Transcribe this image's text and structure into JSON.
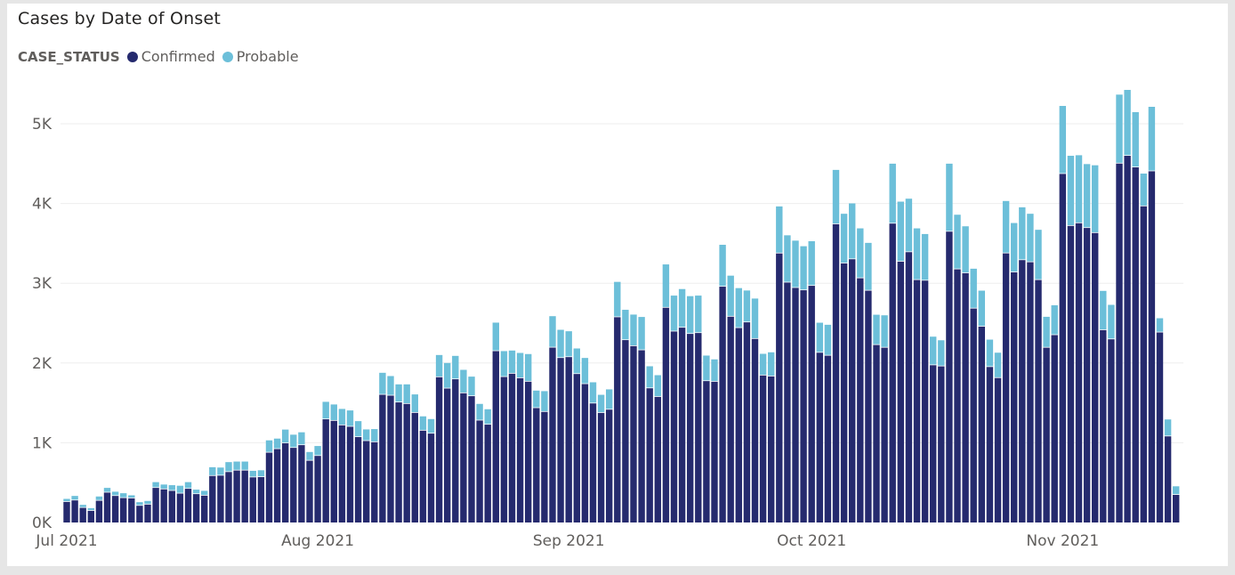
{
  "chart_data": {
    "type": "bar",
    "stacked": true,
    "title": "Cases by Date of Onset",
    "legend_title": "CASE_STATUS",
    "legend_position": "top-left",
    "start_date": "2021-07-01",
    "x_tick_labels": [
      "Jul 2021",
      "Aug 2021",
      "Sep 2021",
      "Oct 2021",
      "Nov 2021"
    ],
    "x_tick_day_index": [
      0,
      31,
      62,
      92,
      123
    ],
    "y_tick_labels": [
      "0K",
      "1K",
      "2K",
      "3K",
      "4K",
      "5K"
    ],
    "y_tick_values": [
      0,
      1000,
      2000,
      3000,
      4000,
      5000
    ],
    "ylim": [
      0,
      5600
    ],
    "grid": true,
    "series": [
      {
        "name": "Confirmed",
        "color": "#252a6e",
        "values": [
          258,
          277,
          184,
          146,
          273,
          375,
          333,
          307,
          303,
          210,
          225,
          434,
          416,
          397,
          363,
          423,
          356,
          337,
          584,
          588,
          633,
          652,
          652,
          566,
          569,
          876,
          921,
          993,
          936,
          970,
          775,
          835,
          1294,
          1275,
          1219,
          1201,
          1071,
          1022,
          1007,
          1602,
          1591,
          1506,
          1487,
          1375,
          1152,
          1115,
          1822,
          1680,
          1796,
          1621,
          1584,
          1279,
          1227,
          2149,
          1825,
          1866,
          1810,
          1766,
          1435,
          1387,
          2193,
          2063,
          2074,
          1862,
          1736,
          1493,
          1374,
          1415,
          2574,
          2287,
          2212,
          2160,
          1683,
          1575,
          2693,
          2395,
          2443,
          2365,
          2376,
          1773,
          1765,
          2957,
          2581,
          2439,
          2510,
          2302,
          1844,
          1832,
          3374,
          3009,
          2942,
          2912,
          2968,
          2129,
          2092,
          3740,
          3249,
          3301,
          3063,
          2907,
          2226,
          2192,
          3748,
          3271,
          3390,
          3041,
          3033,
          1972,
          1958,
          3647,
          3175,
          3126,
          2683,
          2456,
          1950,
          1812,
          3375,
          3137,
          3290,
          3264,
          3041,
          2192,
          2350,
          4371,
          3719,
          3753,
          3693,
          3630,
          2412,
          2297,
          4501,
          4598,
          4453,
          3965,
          4404,
          2383,
          1080,
          346
        ]
      },
      {
        "name": "Probable",
        "color": "#6cbfd9",
        "values": [
          38,
          56,
          37,
          34,
          53,
          59,
          53,
          60,
          38,
          45,
          45,
          72,
          60,
          71,
          98,
          83,
          56,
          60,
          109,
          101,
          124,
          112,
          112,
          82,
          86,
          154,
          131,
          172,
          165,
          161,
          109,
          124,
          219,
          205,
          205,
          204,
          200,
          145,
          164,
          275,
          245,
          226,
          245,
          231,
          179,
          182,
          278,
          320,
          293,
          293,
          245,
          208,
          193,
          357,
          324,
          290,
          316,
          346,
          219,
          260,
          394,
          353,
          324,
          320,
          327,
          265,
          227,
          254,
          443,
          380,
          395,
          417,
          276,
          272,
          543,
          450,
          484,
          473,
          469,
          320,
          280,
          525,
          514,
          500,
          399,
          506,
          271,
          302,
          589,
          592,
          592,
          552,
          559,
          376,
          387,
          681,
          622,
          700,
          625,
          599,
          379,
          406,
          751,
          752,
          670,
          647,
          584,
          358,
          327,
          852,
          684,
          588,
          499,
          451,
          343,
          317,
          656,
          618,
          662,
          607,
          629,
          387,
          374,
          852,
          879,
          852,
          801,
          849,
          492,
          432,
          864,
          826,
          692,
          410,
          808,
          178,
          212,
          108
        ]
      }
    ]
  }
}
